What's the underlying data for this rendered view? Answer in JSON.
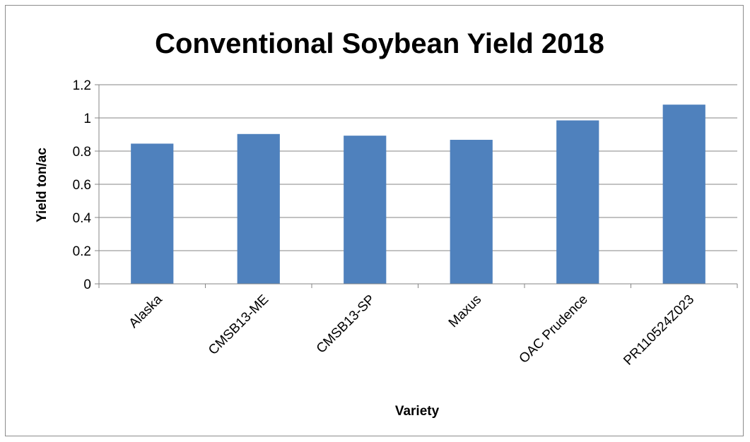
{
  "chart_data": {
    "type": "bar",
    "title": "Conventional Soybean Yield 2018",
    "xlabel": "Variety",
    "ylabel": "Yield  ton/ac",
    "categories": [
      "Alaska",
      "CMSB13-ME",
      "CMSB13-SP",
      "Maxus",
      "OAC Prudence",
      "PR110524Z023"
    ],
    "values": [
      0.845,
      0.903,
      0.893,
      0.868,
      0.985,
      1.08
    ],
    "ylim": [
      0,
      1.2
    ],
    "yticks": [
      "0",
      "0.2",
      "0.4",
      "0.6",
      "0.8",
      "1",
      "1.2"
    ],
    "bar_color": "#4f81bd",
    "grid": true,
    "legend": "none"
  }
}
